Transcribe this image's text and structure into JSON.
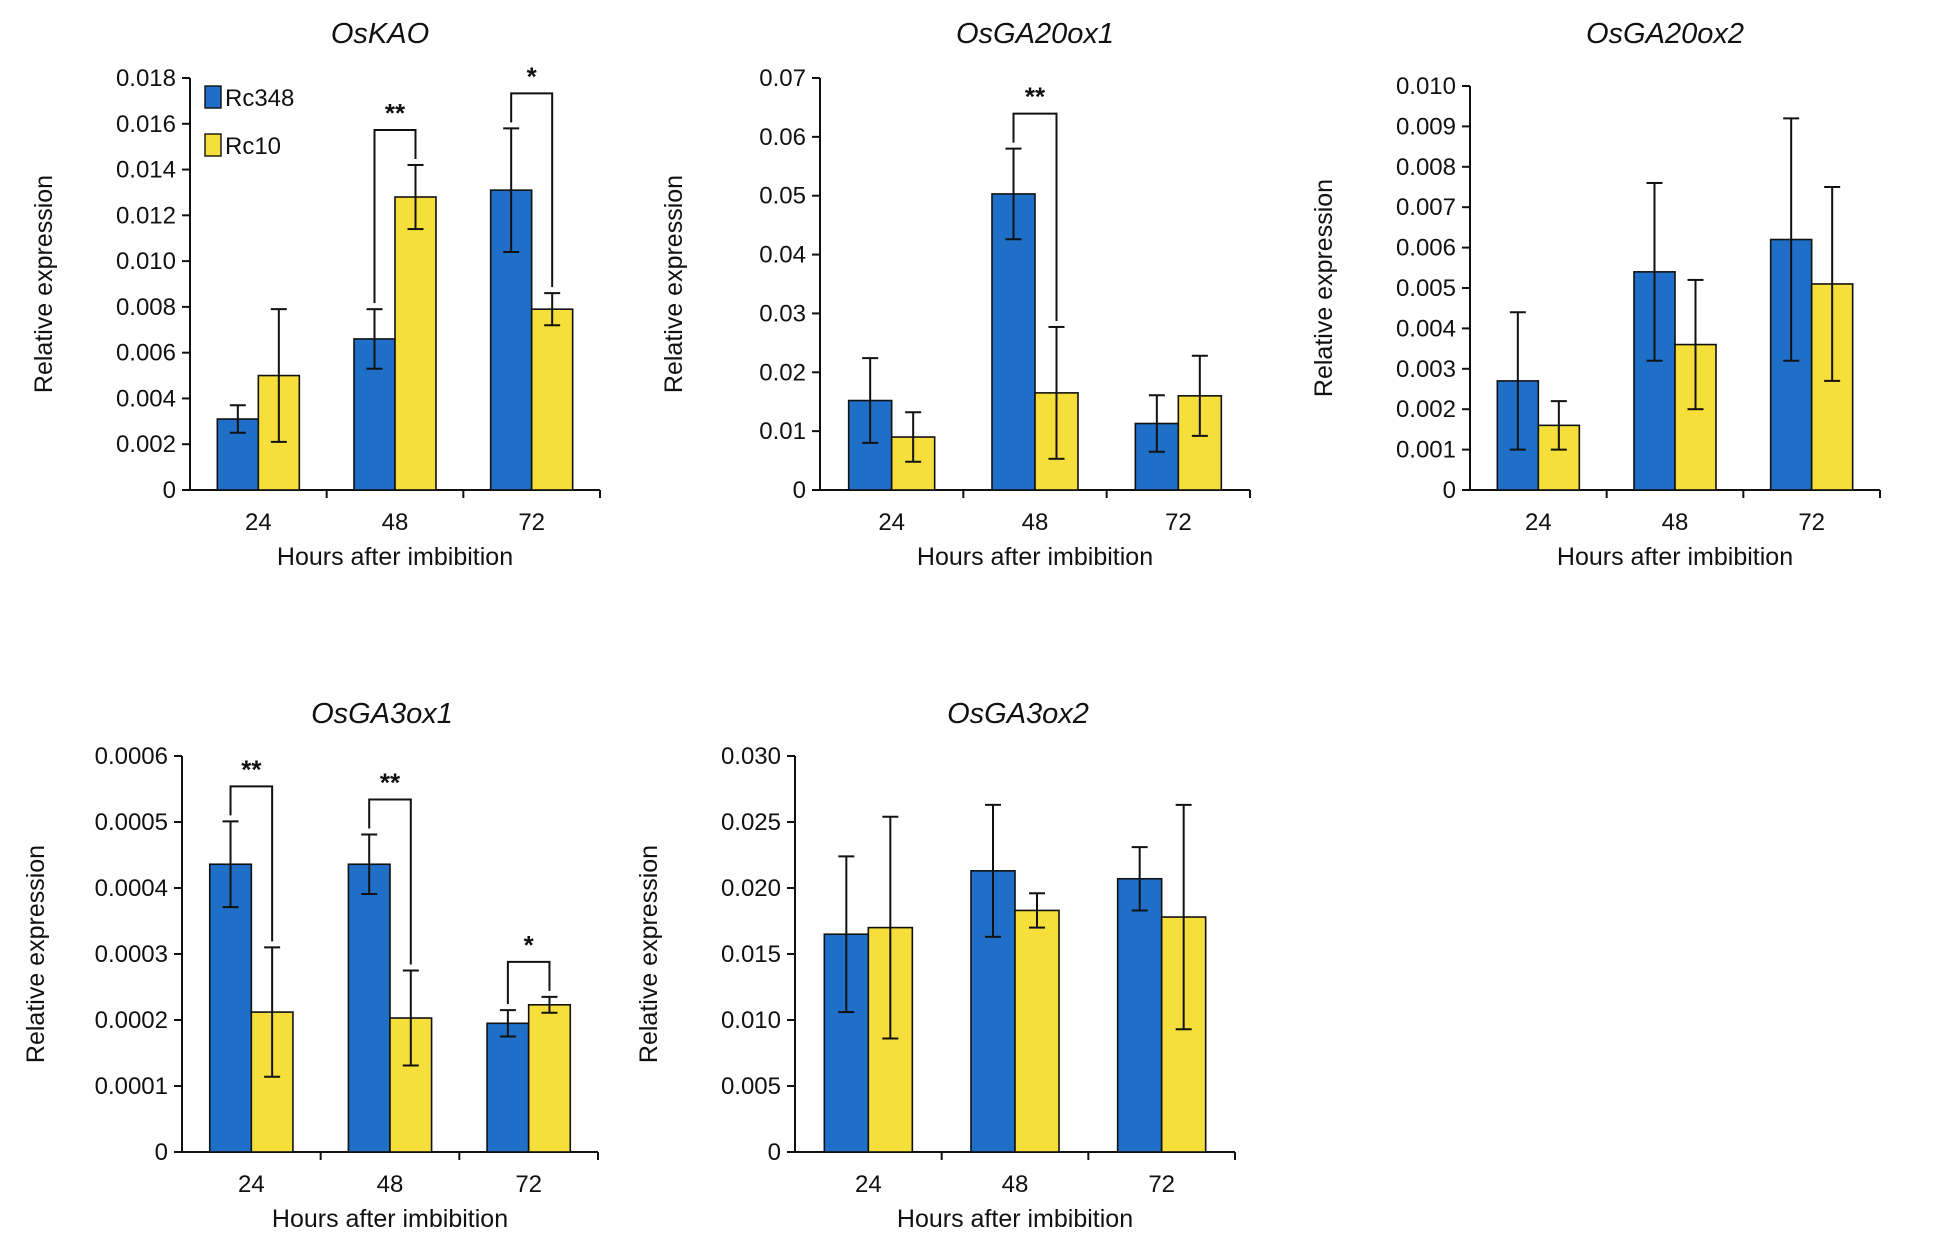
{
  "figure": {
    "legend": [
      {
        "name": "Rc348",
        "color": "#1f6fc8"
      },
      {
        "name": "Rc10",
        "color": "#f7df3b"
      }
    ]
  },
  "chart_data": [
    {
      "type": "bar",
      "title": "OsKAO",
      "xlabel": "Hours after imbibition",
      "ylabel": "Relative expression",
      "categories": [
        "24",
        "48",
        "72"
      ],
      "ylim": [
        0,
        0.018
      ],
      "yticks": [
        "0",
        "0.002",
        "0.004",
        "0.006",
        "0.008",
        "0.010",
        "0.012",
        "0.014",
        "0.016",
        "0.018"
      ],
      "series": [
        {
          "name": "Rc348",
          "values": [
            0.0031,
            0.0066,
            0.0131
          ],
          "errors": [
            0.0006,
            0.0013,
            0.0027
          ]
        },
        {
          "name": "Rc10",
          "values": [
            0.005,
            0.0128,
            0.0079
          ],
          "errors": [
            0.0029,
            0.0014,
            0.0007
          ]
        }
      ],
      "significance": [
        {
          "category": "48",
          "label": "**"
        },
        {
          "category": "72",
          "label": "*"
        }
      ],
      "legend": true
    },
    {
      "type": "bar",
      "title": "OsGA20ox1",
      "xlabel": "Hours after imbibition",
      "ylabel": "Relative expression",
      "categories": [
        "24",
        "48",
        "72"
      ],
      "ylim": [
        0,
        0.07
      ],
      "yticks": [
        "0",
        "0.01",
        "0.02",
        "0.03",
        "0.04",
        "0.05",
        "0.06",
        "0.07"
      ],
      "series": [
        {
          "name": "Rc348",
          "values": [
            0.0152,
            0.0503,
            0.0113
          ],
          "errors": [
            0.0072,
            0.0077,
            0.0048
          ]
        },
        {
          "name": "Rc10",
          "values": [
            0.009,
            0.0165,
            0.016
          ],
          "errors": [
            0.0042,
            0.0112,
            0.0068
          ]
        }
      ],
      "significance": [
        {
          "category": "48",
          "label": "**"
        }
      ],
      "legend": false
    },
    {
      "type": "bar",
      "title": "OsGA20ox2",
      "xlabel": "Hours after imbibition",
      "ylabel": "Relative expression",
      "categories": [
        "24",
        "48",
        "72"
      ],
      "ylim": [
        0,
        0.01
      ],
      "yticks": [
        "0",
        "0.001",
        "0.002",
        "0.003",
        "0.004",
        "0.005",
        "0.006",
        "0.007",
        "0.008",
        "0.009",
        "0.010"
      ],
      "series": [
        {
          "name": "Rc348",
          "values": [
            0.0027,
            0.0054,
            0.0062
          ],
          "errors": [
            0.0017,
            0.0022,
            0.003
          ]
        },
        {
          "name": "Rc10",
          "values": [
            0.0016,
            0.0036,
            0.0051
          ],
          "errors": [
            0.0006,
            0.0016,
            0.0024
          ]
        }
      ],
      "significance": [],
      "legend": false
    },
    {
      "type": "bar",
      "title": "OsGA3ox1",
      "xlabel": "Hours after imbibition",
      "ylabel": "Relative expression",
      "categories": [
        "24",
        "48",
        "72"
      ],
      "ylim": [
        0,
        0.0006
      ],
      "yticks": [
        "0",
        "0.0001",
        "0.0002",
        "0.0003",
        "0.0004",
        "0.0005",
        "0.0006"
      ],
      "series": [
        {
          "name": "Rc348",
          "values": [
            0.000436,
            0.000436,
            0.000195
          ],
          "errors": [
            6.5e-05,
            4.5e-05,
            2e-05
          ]
        },
        {
          "name": "Rc10",
          "values": [
            0.000212,
            0.000203,
            0.000223
          ],
          "errors": [
            9.8e-05,
            7.2e-05,
            1.2e-05
          ]
        }
      ],
      "significance": [
        {
          "category": "24",
          "label": "**"
        },
        {
          "category": "48",
          "label": "**"
        },
        {
          "category": "72",
          "label": "*"
        }
      ],
      "legend": false
    },
    {
      "type": "bar",
      "title": "OsGA3ox2",
      "xlabel": "Hours after imbibition",
      "ylabel": "Relative expression",
      "categories": [
        "24",
        "48",
        "72"
      ],
      "ylim": [
        0,
        0.03
      ],
      "yticks": [
        "0",
        "0.005",
        "0.010",
        "0.015",
        "0.020",
        "0.025",
        "0.030"
      ],
      "series": [
        {
          "name": "Rc348",
          "values": [
            0.0165,
            0.0213,
            0.0207
          ],
          "errors": [
            0.0059,
            0.005,
            0.0024
          ]
        },
        {
          "name": "Rc10",
          "values": [
            0.017,
            0.0183,
            0.0178
          ],
          "errors": [
            0.0084,
            0.0013,
            0.0085
          ]
        }
      ],
      "significance": [],
      "legend": false
    }
  ]
}
